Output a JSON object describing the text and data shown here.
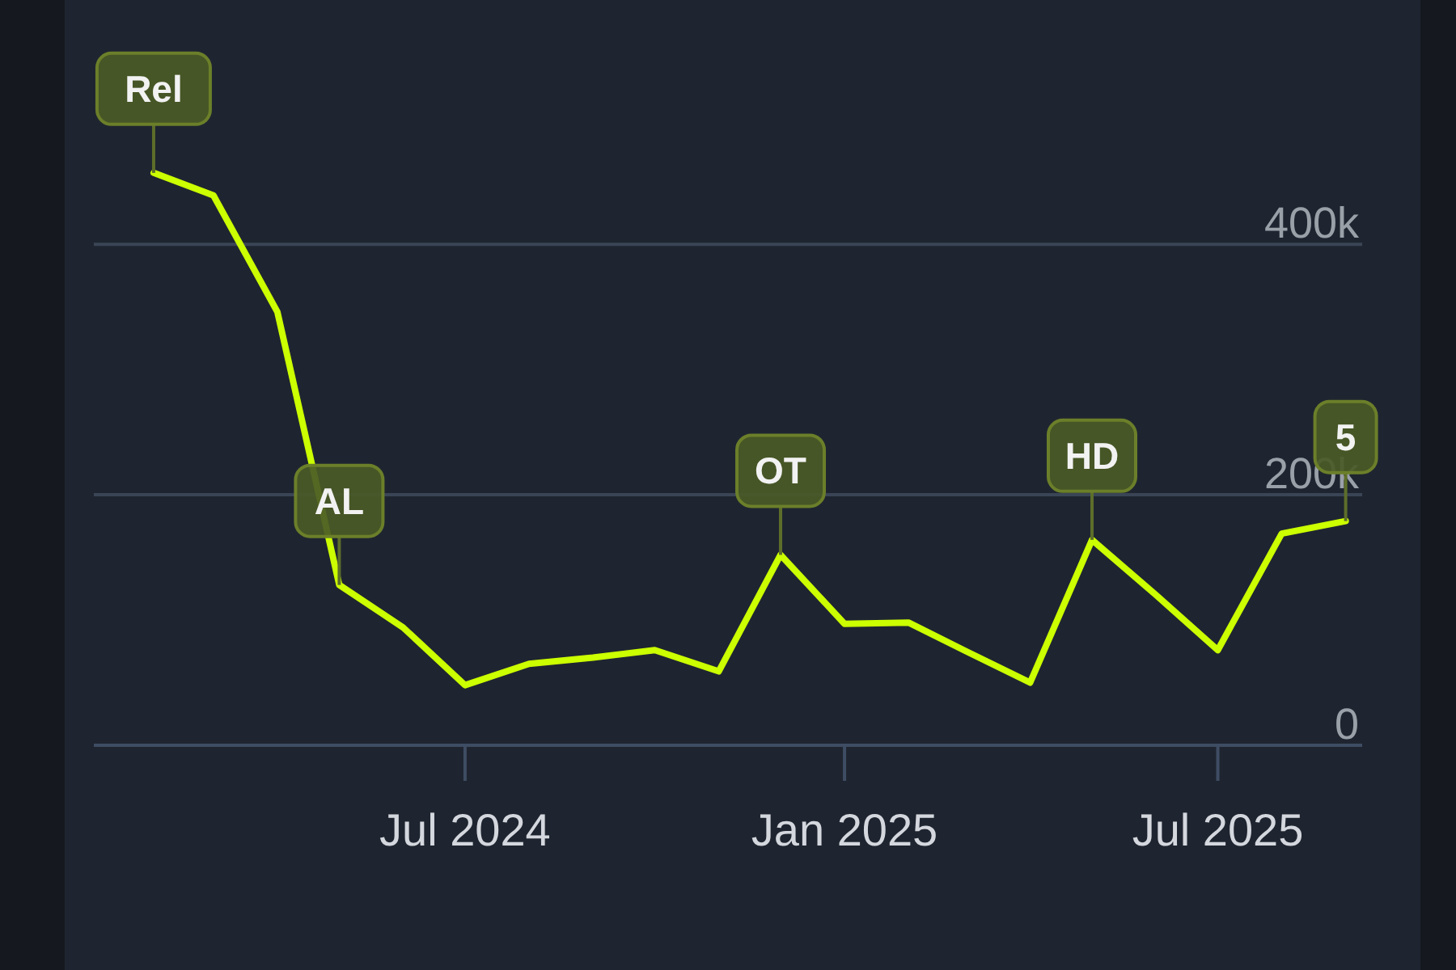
{
  "chart_data": {
    "type": "line",
    "x": [
      "2024-02-01",
      "2024-03-01",
      "2024-04-01",
      "2024-05-01",
      "2024-06-01",
      "2024-07-01",
      "2024-08-01",
      "2024-09-01",
      "2024-10-01",
      "2024-11-01",
      "2024-12-01",
      "2025-01-01",
      "2025-02-01",
      "2025-03-01",
      "2025-04-01",
      "2025-05-01",
      "2025-06-01",
      "2025-07-01",
      "2025-08-01",
      "2025-09-01"
    ],
    "series": [
      {
        "color": "#ccff00",
        "values": [
          457000,
          439000,
          346000,
          128000,
          94000,
          48000,
          65000,
          70000,
          76000,
          59000,
          152000,
          97000,
          98000,
          75000,
          50000,
          164000,
          120000,
          76000,
          169000,
          179000
        ]
      }
    ],
    "xlim": [
      "2024-01-03",
      "2025-09-09"
    ],
    "xticks": [
      {
        "value": "2024-07-01",
        "label": "Jul 2024"
      },
      {
        "value": "2025-01-01",
        "label": "Jan 2025"
      },
      {
        "value": "2025-07-01",
        "label": "Jul 2025"
      }
    ],
    "ylim": [
      0,
      595000
    ],
    "yticks": [
      {
        "value": 0,
        "label": "0"
      },
      {
        "value": 200000,
        "label": "200k"
      },
      {
        "value": 400000,
        "label": "400k"
      }
    ],
    "grid": "y",
    "marker": "none",
    "line_style": "solid",
    "annotations": [
      {
        "text": "Rel",
        "x": "2024-02-01",
        "y": 457000
      },
      {
        "text": "AL",
        "x": "2024-05-01",
        "y": 128000
      },
      {
        "text": "OT",
        "x": "2024-12-01",
        "y": 152000
      },
      {
        "text": "HD",
        "x": "2025-05-01",
        "y": 164000
      },
      {
        "text": "5",
        "x": "2025-09-01",
        "y": 179000
      }
    ]
  }
}
